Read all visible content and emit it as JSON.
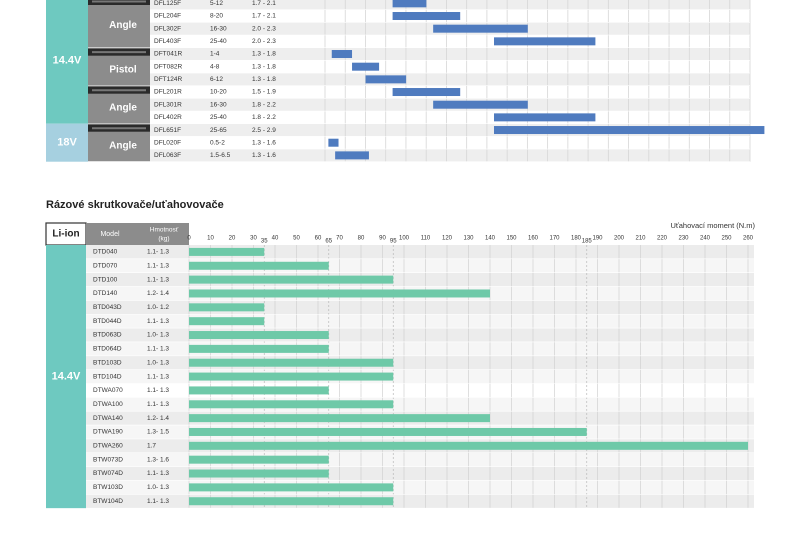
{
  "chart_data": [
    {
      "type": "bar",
      "subtype": "range",
      "series_color": "#4f7bbf",
      "volt_colors": {
        "14.4V": "#6ec9c0",
        "18V": "#a6d0e0"
      },
      "rows": [
        {
          "volt": "14.4V",
          "tool": "Angle",
          "model": "DFL125F",
          "speed": "5-12",
          "weight": "1.7 - 2.1",
          "min": 10,
          "max": 15
        },
        {
          "volt": "14.4V",
          "tool": "Angle",
          "model": "DFL204F",
          "speed": "8-20",
          "weight": "1.7 - 2.1",
          "min": 10,
          "max": 20
        },
        {
          "volt": "14.4V",
          "tool": "Angle",
          "model": "DFL302F",
          "speed": "16-30",
          "weight": "2.0 - 2.3",
          "min": 16,
          "max": 30
        },
        {
          "volt": "14.4V",
          "tool": "Angle",
          "model": "DFL403F",
          "speed": "25-40",
          "weight": "2.0 - 2.3",
          "min": 25,
          "max": 40
        },
        {
          "volt": "14.4V",
          "tool": "Pistol",
          "model": "DFT041R",
          "speed": "1-4",
          "weight": "1.3 - 1.8",
          "min": 1,
          "max": 4
        },
        {
          "volt": "14.4V",
          "tool": "Pistol",
          "model": "DFT082R",
          "speed": "4-8",
          "weight": "1.3 - 1.8",
          "min": 4,
          "max": 8
        },
        {
          "volt": "14.4V",
          "tool": "Pistol",
          "model": "DFT124R",
          "speed": "6-12",
          "weight": "1.3 - 1.8",
          "min": 6,
          "max": 12
        },
        {
          "volt": "14.4V",
          "tool": "Angle",
          "model": "DFL201R",
          "speed": "10-20",
          "weight": "1.5 - 1.9",
          "min": 10,
          "max": 20
        },
        {
          "volt": "14.4V",
          "tool": "Angle",
          "model": "DFL301R",
          "speed": "16-30",
          "weight": "1.8 - 2.2",
          "min": 16,
          "max": 30
        },
        {
          "volt": "14.4V",
          "tool": "Angle",
          "model": "DFL402R",
          "speed": "25-40",
          "weight": "1.8 - 2.2",
          "min": 25,
          "max": 40
        },
        {
          "volt": "18V",
          "tool": "Angle",
          "model": "DFL651F",
          "speed": "25-65",
          "weight": "2.5 - 2.9",
          "min": 25,
          "max": 65
        },
        {
          "volt": "18V",
          "tool": "Angle",
          "model": "DFL020F",
          "speed": "0.5-2",
          "weight": "1.3 - 1.6",
          "min": 0.5,
          "max": 2
        },
        {
          "volt": "18V",
          "tool": "Angle",
          "model": "DFL063F",
          "speed": "1.5-6.5",
          "weight": "1.3 - 1.6",
          "min": 1.5,
          "max": 6.5
        }
      ],
      "voltage_groups": [
        {
          "label": "14.4V",
          "start": 0,
          "end": 9
        },
        {
          "label": "18V",
          "start": 10,
          "end": 12
        }
      ],
      "tool_groups": [
        {
          "label": "Angle",
          "start": 0,
          "end": 3
        },
        {
          "label": "Pistol",
          "start": 4,
          "end": 6
        },
        {
          "label": "Angle",
          "start": 7,
          "end": 9
        },
        {
          "label": "Angle",
          "start": 10,
          "end": 12
        }
      ]
    },
    {
      "type": "bar",
      "title": "Rázové skrutkovače/uťahovovače",
      "xlabel": "Uťahovací moment (N.m)",
      "series_color": "#6ec9a8",
      "xlim": [
        0,
        260
      ],
      "ticks": [
        0,
        10,
        20,
        30,
        35,
        40,
        50,
        60,
        65,
        70,
        80,
        90,
        95,
        100,
        110,
        120,
        130,
        140,
        150,
        160,
        170,
        180,
        185,
        190,
        200,
        210,
        220,
        230,
        240,
        250,
        260
      ],
      "header": {
        "battery": "Li-ion",
        "model": "Model",
        "weight": "Hmotnosť (kg)"
      },
      "voltage": "14.4V",
      "rows": [
        {
          "model": "DTD040",
          "weight": "1.1- 1.3",
          "value": 35
        },
        {
          "model": "DTD070",
          "weight": "1.1- 1.3",
          "value": 65
        },
        {
          "model": "DTD100",
          "weight": "1.1- 1.3",
          "value": 95
        },
        {
          "model": "DTD140",
          "weight": "1.2- 1.4",
          "value": 140
        },
        {
          "model": "BTD043D",
          "weight": "1.0- 1.2",
          "value": 35
        },
        {
          "model": "BTD044D",
          "weight": "1.1- 1.3",
          "value": 35
        },
        {
          "model": "BTD063D",
          "weight": "1.0- 1.3",
          "value": 65
        },
        {
          "model": "BTD064D",
          "weight": "1.1- 1.3",
          "value": 65
        },
        {
          "model": "BTD103D",
          "weight": "1.0- 1.3",
          "value": 95
        },
        {
          "model": "BTD104D",
          "weight": "1.1- 1.3",
          "value": 95
        },
        {
          "model": "DTWA070",
          "weight": "1.1- 1.3",
          "value": 65
        },
        {
          "model": "DTWA100",
          "weight": "1.1- 1.3",
          "value": 95
        },
        {
          "model": "DTWA140",
          "weight": "1.2- 1.4",
          "value": 140
        },
        {
          "model": "DTWA190",
          "weight": "1.3- 1.5",
          "value": 185
        },
        {
          "model": "DTWA260",
          "weight": "1.7",
          "value": 260
        },
        {
          "model": "BTW073D",
          "weight": "1.3- 1.6",
          "value": 65
        },
        {
          "model": "BTW074D",
          "weight": "1.1- 1.3",
          "value": 65
        },
        {
          "model": "BTW103D",
          "weight": "1.0- 1.3",
          "value": 95
        },
        {
          "model": "BTW104D",
          "weight": "1.1- 1.3",
          "value": 95
        }
      ]
    }
  ]
}
